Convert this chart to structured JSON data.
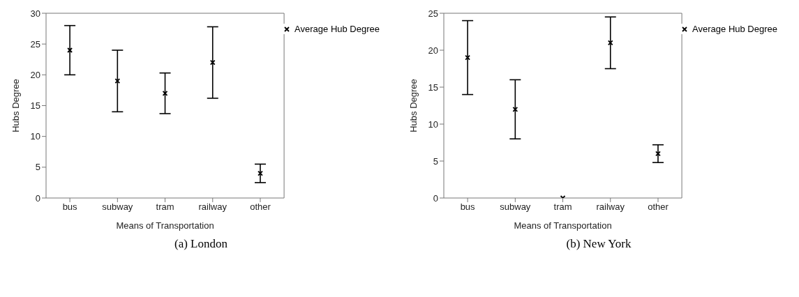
{
  "chart_data": [
    {
      "type": "scatter",
      "title": "(a) London",
      "xlabel": "Means of Transportation",
      "ylabel": "Hubs Degree",
      "categories": [
        "bus",
        "subway",
        "tram",
        "railway",
        "other"
      ],
      "series": [
        {
          "name": "Average Hub Degree",
          "color": "#000000",
          "values": [
            24,
            19,
            17,
            22,
            4
          ],
          "errors": [
            [
              20,
              28
            ],
            [
              14,
              24
            ],
            [
              13.7,
              20.3
            ],
            [
              16.2,
              27.8
            ],
            [
              2.5,
              5.5
            ]
          ]
        }
      ],
      "ylim": [
        0,
        30
      ],
      "yticks": [
        0,
        5,
        10,
        15,
        20,
        25,
        30
      ],
      "grid": false,
      "legend": "top right",
      "marker": "cross"
    },
    {
      "type": "scatter",
      "title": "(b) New York",
      "xlabel": "Means of Transportation",
      "ylabel": "Hubs Degree",
      "categories": [
        "bus",
        "subway",
        "tram",
        "railway",
        "other"
      ],
      "series": [
        {
          "name": "Average Hub Degree",
          "color": "#000000",
          "values": [
            19,
            12,
            0,
            21,
            6
          ],
          "errors": [
            [
              14,
              24
            ],
            [
              8,
              16
            ],
            null,
            [
              17.5,
              24.5
            ],
            [
              4.8,
              7.2
            ]
          ]
        }
      ],
      "ylim": [
        0,
        25
      ],
      "yticks": [
        0,
        5,
        10,
        15,
        20,
        25
      ],
      "grid": false,
      "legend": "top right",
      "marker": "cross"
    }
  ]
}
